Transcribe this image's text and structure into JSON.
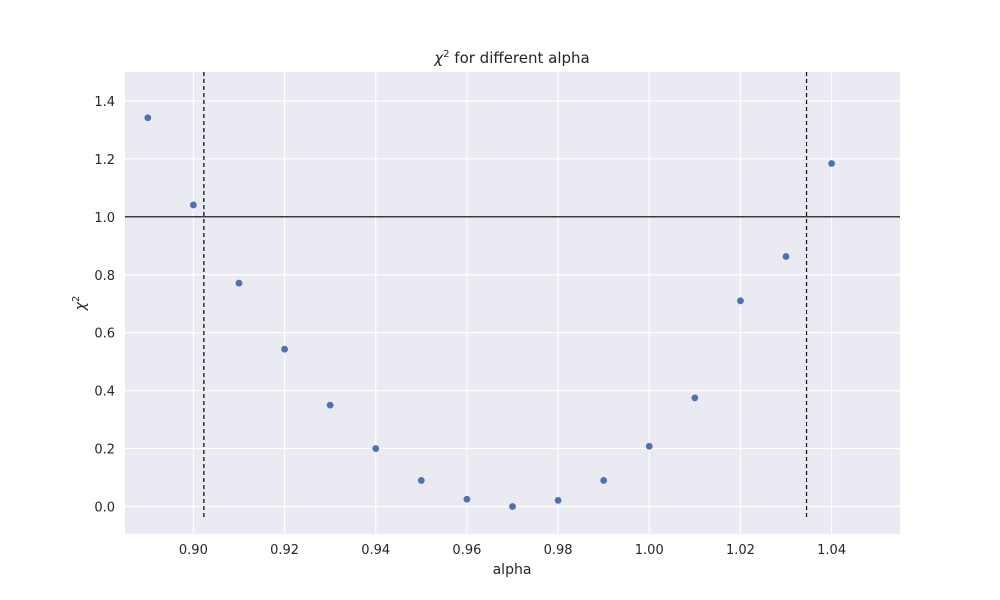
{
  "chart_data": {
    "type": "scatter",
    "title": "χ² for different alpha",
    "title_parts": {
      "symbol": "χ",
      "superscript": "2",
      "rest": " for different alpha"
    },
    "xlabel": "alpha",
    "ylabel": "χ²",
    "ylabel_parts": {
      "symbol": "χ",
      "superscript": "2"
    },
    "xlim": [
      0.885,
      1.055
    ],
    "ylim": [
      -0.095,
      1.5
    ],
    "xticks": [
      0.9,
      0.92,
      0.94,
      0.96,
      0.98,
      1.0,
      1.02,
      1.04
    ],
    "xtick_labels": [
      "0.90",
      "0.92",
      "0.94",
      "0.96",
      "0.98",
      "1.00",
      "1.02",
      "1.04"
    ],
    "yticks": [
      0.0,
      0.2,
      0.4,
      0.6,
      0.8,
      1.0,
      1.2,
      1.4
    ],
    "ytick_labels": [
      "0.0",
      "0.2",
      "0.4",
      "0.6",
      "0.8",
      "1.0",
      "1.2",
      "1.4"
    ],
    "grid": true,
    "series": [
      {
        "color": "#4c72b0",
        "x": [
          0.89,
          0.9,
          0.91,
          0.92,
          0.93,
          0.94,
          0.95,
          0.96,
          0.97,
          0.98,
          0.99,
          1.0,
          1.01,
          1.02,
          1.03,
          1.04
        ],
        "y": [
          1.342,
          1.041,
          0.771,
          0.543,
          0.35,
          0.2,
          0.09,
          0.025,
          0.0,
          0.021,
          0.09,
          0.208,
          0.375,
          0.71,
          0.863,
          1.184
        ]
      }
    ],
    "reference_lines": {
      "horizontal": [
        {
          "y": 1.0,
          "style": "solid",
          "color": "#000000"
        }
      ],
      "vertical": [
        {
          "x": 0.9023,
          "style": "dashed",
          "color": "#000000"
        },
        {
          "x": 1.0345,
          "style": "dashed",
          "color": "#000000"
        }
      ]
    },
    "colors": {
      "plot_background": "#eaeaf2",
      "grid": "#ffffff",
      "marker": "#4c72b0"
    }
  }
}
